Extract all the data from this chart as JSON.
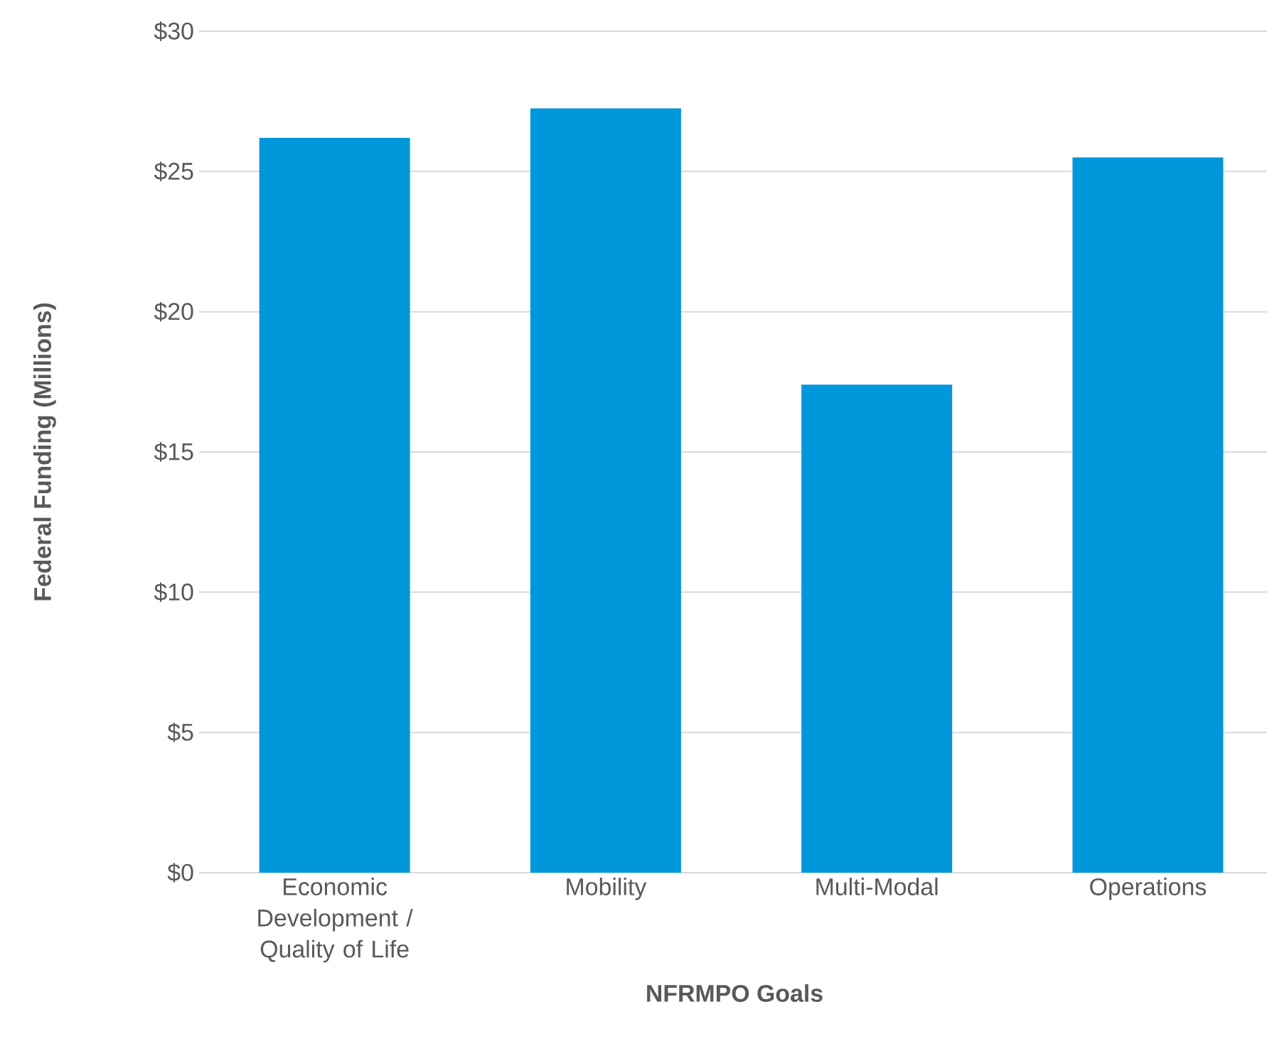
{
  "chart_data": {
    "type": "bar",
    "xlabel": "NFRMPO Goals",
    "ylabel": "Federal Funding (Millions)",
    "categories": [
      "Economic Development / Quality of Life",
      "Mobility",
      "Multi-Modal",
      "Operations"
    ],
    "values": [
      26.2,
      27.25,
      17.4,
      25.5
    ],
    "color": "#0098db",
    "ylim": [
      0,
      30
    ],
    "yticks": [
      {
        "value": 0,
        "label": "$0"
      },
      {
        "value": 5,
        "label": "$5"
      },
      {
        "value": 10,
        "label": "$10"
      },
      {
        "value": 15,
        "label": "$15"
      },
      {
        "value": 20,
        "label": "$20"
      },
      {
        "value": 25,
        "label": "$25"
      },
      {
        "value": 30,
        "label": "$30"
      }
    ],
    "grid": "y"
  }
}
